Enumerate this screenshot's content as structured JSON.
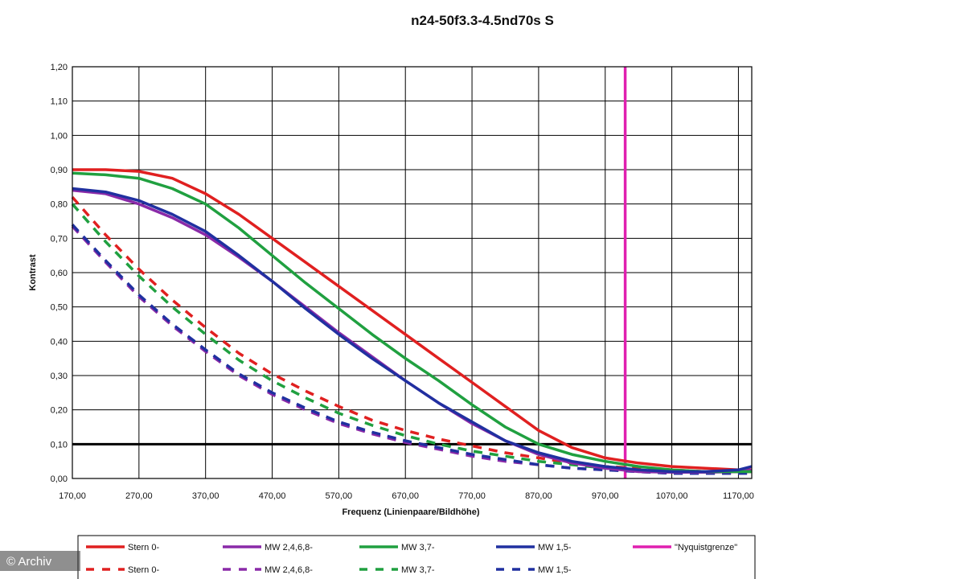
{
  "chart_data": {
    "type": "line",
    "title": "n24-50f3.3-4.5nd70s S",
    "xlabel": "Frequenz (Linienpaare/Bildhöhe)",
    "ylabel": "Kontrast",
    "xlim": [
      170,
      1190
    ],
    "ylim": [
      0,
      1.2
    ],
    "x_ticks": [
      "170,00",
      "270,00",
      "370,00",
      "470,00",
      "570,00",
      "670,00",
      "770,00",
      "870,00",
      "970,00",
      "1070,00",
      "1170,00"
    ],
    "y_ticks": [
      "0,00",
      "0,10",
      "0,20",
      "0,30",
      "0,40",
      "0,50",
      "0,60",
      "0,70",
      "0,80",
      "0,90",
      "1,00",
      "1,10",
      "1,20"
    ],
    "grid": true,
    "legend_position": "bottom",
    "reference_lines": [
      {
        "axis": "y",
        "value": 0.1,
        "color": "#000000"
      },
      {
        "axis": "x",
        "value": 1000,
        "color": "#e020b0",
        "name": "\"Nyquistgrenze\""
      }
    ],
    "series": [
      {
        "name": "Stern 0-",
        "style": "solid",
        "color": "#e02020",
        "x": [
          170,
          220,
          270,
          320,
          370,
          420,
          470,
          520,
          570,
          620,
          670,
          720,
          770,
          820,
          870,
          920,
          970,
          1020,
          1070,
          1120,
          1170,
          1190
        ],
        "y": [
          0.9,
          0.9,
          0.895,
          0.875,
          0.83,
          0.77,
          0.7,
          0.63,
          0.56,
          0.49,
          0.42,
          0.35,
          0.28,
          0.21,
          0.14,
          0.09,
          0.06,
          0.045,
          0.035,
          0.03,
          0.025,
          0.025
        ]
      },
      {
        "name": "MW 2,4,6,8-",
        "style": "solid",
        "color": "#8a2aa8",
        "x": [
          170,
          220,
          270,
          320,
          370,
          420,
          470,
          520,
          570,
          620,
          670,
          720,
          770,
          820,
          870,
          920,
          970,
          1020,
          1070,
          1120,
          1170,
          1190
        ],
        "y": [
          0.84,
          0.83,
          0.8,
          0.76,
          0.71,
          0.645,
          0.575,
          0.5,
          0.425,
          0.355,
          0.285,
          0.22,
          0.16,
          0.11,
          0.07,
          0.045,
          0.03,
          0.02,
          0.018,
          0.018,
          0.02,
          0.025
        ]
      },
      {
        "name": "MW 3,7-",
        "style": "solid",
        "color": "#20a040",
        "x": [
          170,
          220,
          270,
          320,
          370,
          420,
          470,
          520,
          570,
          620,
          670,
          720,
          770,
          820,
          870,
          920,
          970,
          1020,
          1070,
          1120,
          1170,
          1190
        ],
        "y": [
          0.89,
          0.885,
          0.875,
          0.845,
          0.8,
          0.73,
          0.65,
          0.57,
          0.495,
          0.42,
          0.35,
          0.285,
          0.215,
          0.15,
          0.1,
          0.07,
          0.05,
          0.035,
          0.025,
          0.02,
          0.02,
          0.02
        ]
      },
      {
        "name": "MW 1,5-",
        "style": "solid",
        "color": "#2030a0",
        "x": [
          170,
          220,
          270,
          320,
          370,
          420,
          470,
          520,
          570,
          620,
          670,
          720,
          770,
          820,
          870,
          920,
          970,
          1020,
          1070,
          1120,
          1170,
          1190
        ],
        "y": [
          0.845,
          0.835,
          0.81,
          0.77,
          0.72,
          0.65,
          0.575,
          0.495,
          0.42,
          0.35,
          0.285,
          0.22,
          0.165,
          0.11,
          0.075,
          0.05,
          0.035,
          0.025,
          0.02,
          0.02,
          0.025,
          0.035
        ]
      },
      {
        "name": "Stern 0-",
        "style": "dashed",
        "color": "#e02020",
        "x": [
          170,
          220,
          270,
          320,
          370,
          420,
          470,
          520,
          570,
          620,
          670,
          720,
          770,
          820,
          870,
          920,
          970,
          1020,
          1070,
          1120,
          1170,
          1190
        ],
        "y": [
          0.82,
          0.71,
          0.61,
          0.52,
          0.44,
          0.365,
          0.305,
          0.255,
          0.21,
          0.17,
          0.14,
          0.115,
          0.095,
          0.075,
          0.06,
          0.045,
          0.035,
          0.03,
          0.025,
          0.02,
          0.02,
          0.02
        ]
      },
      {
        "name": "MW 2,4,6,8-",
        "style": "dashed",
        "color": "#8a2aa8",
        "x": [
          170,
          220,
          270,
          320,
          370,
          420,
          470,
          520,
          570,
          620,
          670,
          720,
          770,
          820,
          870,
          920,
          970,
          1020,
          1070,
          1120,
          1170,
          1190
        ],
        "y": [
          0.735,
          0.63,
          0.53,
          0.445,
          0.37,
          0.3,
          0.245,
          0.2,
          0.16,
          0.13,
          0.105,
          0.085,
          0.065,
          0.05,
          0.04,
          0.03,
          0.025,
          0.02,
          0.015,
          0.015,
          0.015,
          0.015
        ]
      },
      {
        "name": "MW 3,7-",
        "style": "dashed",
        "color": "#20a040",
        "x": [
          170,
          220,
          270,
          320,
          370,
          420,
          470,
          520,
          570,
          620,
          670,
          720,
          770,
          820,
          870,
          920,
          970,
          1020,
          1070,
          1120,
          1170,
          1190
        ],
        "y": [
          0.8,
          0.69,
          0.59,
          0.5,
          0.42,
          0.345,
          0.285,
          0.235,
          0.19,
          0.155,
          0.125,
          0.1,
          0.08,
          0.065,
          0.05,
          0.04,
          0.03,
          0.025,
          0.02,
          0.02,
          0.02,
          0.02
        ]
      },
      {
        "name": "MW 1,5-",
        "style": "dashed",
        "color": "#2030a0",
        "x": [
          170,
          220,
          270,
          320,
          370,
          420,
          470,
          520,
          570,
          620,
          670,
          720,
          770,
          820,
          870,
          920,
          970,
          1020,
          1070,
          1120,
          1170,
          1190
        ],
        "y": [
          0.74,
          0.635,
          0.535,
          0.45,
          0.375,
          0.305,
          0.25,
          0.205,
          0.165,
          0.135,
          0.11,
          0.09,
          0.07,
          0.055,
          0.04,
          0.03,
          0.025,
          0.02,
          0.015,
          0.015,
          0.015,
          0.015
        ]
      }
    ],
    "legend": {
      "row1": [
        {
          "label": "Stern 0-",
          "color": "#e02020",
          "style": "solid"
        },
        {
          "label": "MW 2,4,6,8-",
          "color": "#8a2aa8",
          "style": "solid"
        },
        {
          "label": "MW 3,7-",
          "color": "#20a040",
          "style": "solid"
        },
        {
          "label": "MW 1,5-",
          "color": "#2030a0",
          "style": "solid"
        },
        {
          "label": "\"Nyquistgrenze\"",
          "color": "#e020b0",
          "style": "solid"
        }
      ],
      "row2": [
        {
          "label": "Stern 0-",
          "color": "#e02020",
          "style": "dashed"
        },
        {
          "label": "MW 2,4,6,8-",
          "color": "#8a2aa8",
          "style": "dashed"
        },
        {
          "label": "MW 3,7-",
          "color": "#20a040",
          "style": "dashed"
        },
        {
          "label": "MW 1,5-",
          "color": "#2030a0",
          "style": "dashed"
        }
      ]
    }
  },
  "watermark": "© Archiv"
}
